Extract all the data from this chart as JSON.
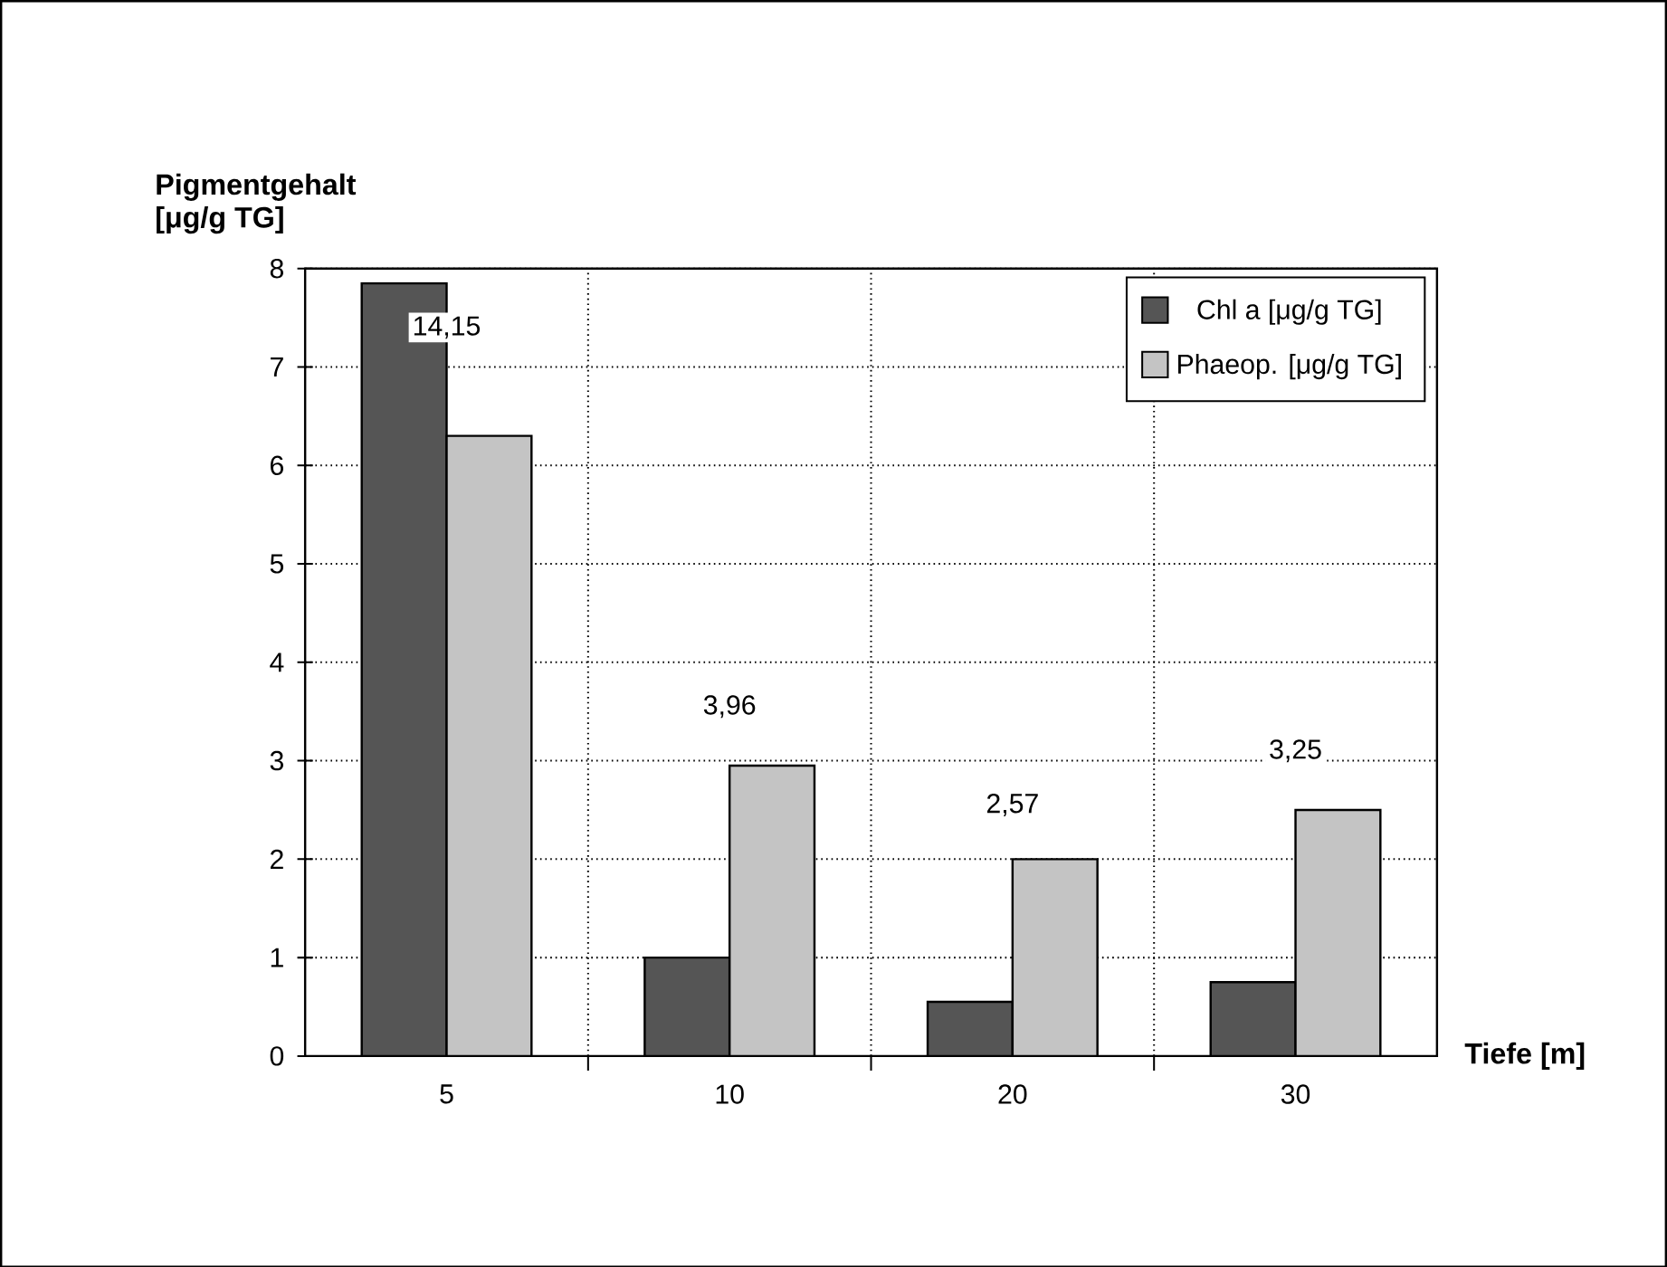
{
  "chart_data": {
    "type": "bar",
    "categories": [
      "5",
      "10",
      "20",
      "30"
    ],
    "series": [
      {
        "name": "Chl a [μg/g TG]",
        "color": "#555555",
        "values": [
          7.85,
          1.0,
          0.55,
          0.75
        ]
      },
      {
        "name": "Phaeop. [μg/g TG]",
        "color": "#c4c4c4",
        "values": [
          6.3,
          2.95,
          2.0,
          2.5
        ]
      }
    ],
    "xlabel": "Tiefe [m]",
    "ylabel": "Pigmentgehalt [μg/g TG]",
    "ylim": [
      0,
      8
    ],
    "yticks": [
      0,
      1,
      2,
      3,
      4,
      5,
      6,
      7,
      8
    ],
    "grid": true,
    "legend": "top right",
    "annotations": [
      {
        "text": "14,15",
        "x": "5",
        "y": 7.4
      },
      {
        "text": "3,96",
        "x": "10",
        "y": 3.55
      },
      {
        "text": "2,57",
        "x": "20",
        "y": 2.55
      },
      {
        "text": "3,25",
        "x": "30",
        "y": 3.1
      }
    ]
  }
}
